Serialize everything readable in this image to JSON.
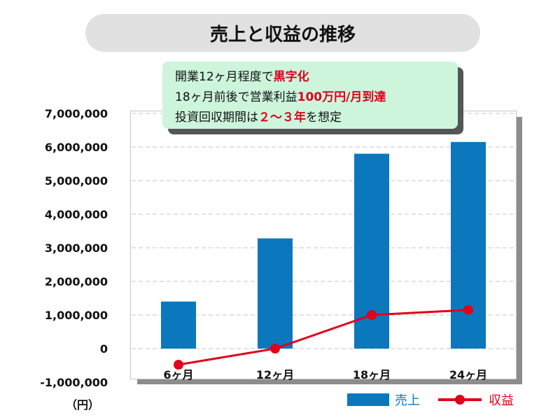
{
  "chart_data": {
    "type": "bar+line",
    "title": "売上と収益の推移",
    "categories": [
      "6ヶ月",
      "12ヶ月",
      "18ヶ月",
      "24ヶ月"
    ],
    "series": [
      {
        "name": "売上",
        "type": "bar",
        "color": "#0b78bd",
        "values": [
          1400000,
          3280000,
          5800000,
          6150000
        ]
      },
      {
        "name": "収益",
        "type": "line",
        "color": "#e0001b",
        "values": [
          -480000,
          0,
          1000000,
          1150000
        ]
      }
    ],
    "ylim": [
      -1000000,
      7000000
    ],
    "yticks": [
      7000000,
      6000000,
      5000000,
      4000000,
      3000000,
      2000000,
      1000000,
      0,
      -1000000
    ],
    "ytick_labels": [
      "7,000,000",
      "6,000,000",
      "5,000,000",
      "4,000,000",
      "3,000,000",
      "2,000,000",
      "1,000,000",
      "0",
      "-1,000,000"
    ],
    "yunit": "（円）",
    "grid": "horizontal dashed",
    "legend_position": "bottom-right",
    "annotation": {
      "line1_a": "開業12ヶ月程度で",
      "line1_b": "黒字化",
      "line2_a": "18ヶ月前後で営業利益",
      "line2_b": "100万円/月到達",
      "line3_a": "投資回収期間は",
      "line3_b": "２～３年",
      "line3_c": "を想定"
    }
  }
}
